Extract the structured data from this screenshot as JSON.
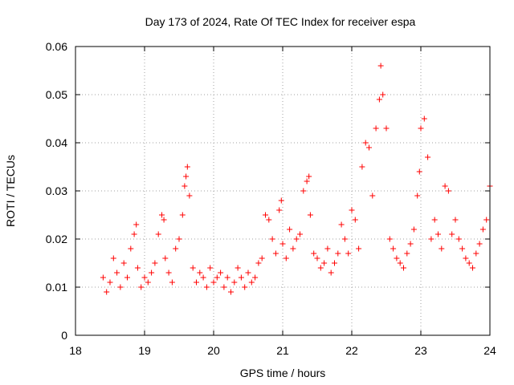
{
  "chart_data": {
    "type": "scatter",
    "title": "Day 173 of 2024, Rate Of TEC Index for receiver espa",
    "xlabel": "GPS time / hours",
    "ylabel": "ROTI / TECUs",
    "xlim": [
      18,
      24
    ],
    "ylim": [
      0,
      0.06
    ],
    "x_ticks": [
      18,
      19,
      20,
      21,
      22,
      23,
      24
    ],
    "x_tick_labels": [
      "18",
      "19",
      "20",
      "21",
      "22",
      "23",
      "24"
    ],
    "y_ticks": [
      0,
      0.01,
      0.02,
      0.03,
      0.04,
      0.05,
      0.06
    ],
    "y_tick_labels": [
      "0",
      "0.01",
      "0.02",
      "0.03",
      "0.04",
      "0.05",
      "0.06"
    ],
    "grid": true,
    "marker": "+",
    "color": "#ff0000",
    "series": [
      {
        "name": "ROTI",
        "x": [
          18.4,
          18.45,
          18.5,
          18.55,
          18.6,
          18.65,
          18.7,
          18.75,
          18.8,
          18.85,
          18.88,
          18.9,
          18.95,
          19.0,
          19.05,
          19.1,
          19.15,
          19.2,
          19.25,
          19.28,
          19.3,
          19.35,
          19.4,
          19.45,
          19.5,
          19.55,
          19.58,
          19.6,
          19.62,
          19.65,
          19.7,
          19.75,
          19.8,
          19.85,
          19.9,
          19.95,
          20.0,
          20.05,
          20.1,
          20.15,
          20.2,
          20.25,
          20.3,
          20.35,
          20.4,
          20.45,
          20.5,
          20.55,
          20.6,
          20.65,
          20.7,
          20.75,
          20.8,
          20.85,
          20.9,
          20.95,
          20.98,
          21.0,
          21.05,
          21.1,
          21.15,
          21.2,
          21.25,
          21.3,
          21.35,
          21.38,
          21.4,
          21.45,
          21.5,
          21.55,
          21.6,
          21.65,
          21.7,
          21.75,
          21.8,
          21.85,
          21.9,
          21.95,
          22.0,
          22.05,
          22.1,
          22.15,
          22.2,
          22.25,
          22.3,
          22.35,
          22.4,
          22.42,
          22.45,
          22.5,
          22.55,
          22.6,
          22.65,
          22.7,
          22.75,
          22.8,
          22.85,
          22.9,
          22.95,
          22.98,
          23.0,
          23.05,
          23.1,
          23.15,
          23.2,
          23.25,
          23.3,
          23.35,
          23.4,
          23.45,
          23.5,
          23.55,
          23.6,
          23.65,
          23.7,
          23.75,
          23.8,
          23.85,
          23.9,
          23.95,
          24.0
        ],
        "values": [
          0.012,
          0.009,
          0.011,
          0.016,
          0.013,
          0.01,
          0.015,
          0.012,
          0.018,
          0.021,
          0.023,
          0.014,
          0.01,
          0.012,
          0.011,
          0.013,
          0.015,
          0.021,
          0.025,
          0.024,
          0.016,
          0.013,
          0.011,
          0.018,
          0.02,
          0.025,
          0.031,
          0.033,
          0.035,
          0.029,
          0.014,
          0.011,
          0.013,
          0.012,
          0.01,
          0.014,
          0.011,
          0.012,
          0.013,
          0.01,
          0.012,
          0.009,
          0.011,
          0.014,
          0.012,
          0.01,
          0.013,
          0.011,
          0.012,
          0.015,
          0.016,
          0.025,
          0.024,
          0.02,
          0.017,
          0.026,
          0.028,
          0.019,
          0.016,
          0.022,
          0.018,
          0.02,
          0.021,
          0.03,
          0.032,
          0.033,
          0.025,
          0.017,
          0.016,
          0.014,
          0.015,
          0.018,
          0.013,
          0.015,
          0.017,
          0.023,
          0.02,
          0.017,
          0.026,
          0.024,
          0.018,
          0.035,
          0.04,
          0.039,
          0.029,
          0.043,
          0.049,
          0.056,
          0.05,
          0.043,
          0.02,
          0.018,
          0.016,
          0.015,
          0.014,
          0.017,
          0.019,
          0.022,
          0.029,
          0.034,
          0.043,
          0.045,
          0.037,
          0.02,
          0.024,
          0.021,
          0.018,
          0.031,
          0.03,
          0.021,
          0.024,
          0.02,
          0.018,
          0.016,
          0.015,
          0.014,
          0.017,
          0.019,
          0.022,
          0.024,
          0.031
        ]
      }
    ]
  }
}
